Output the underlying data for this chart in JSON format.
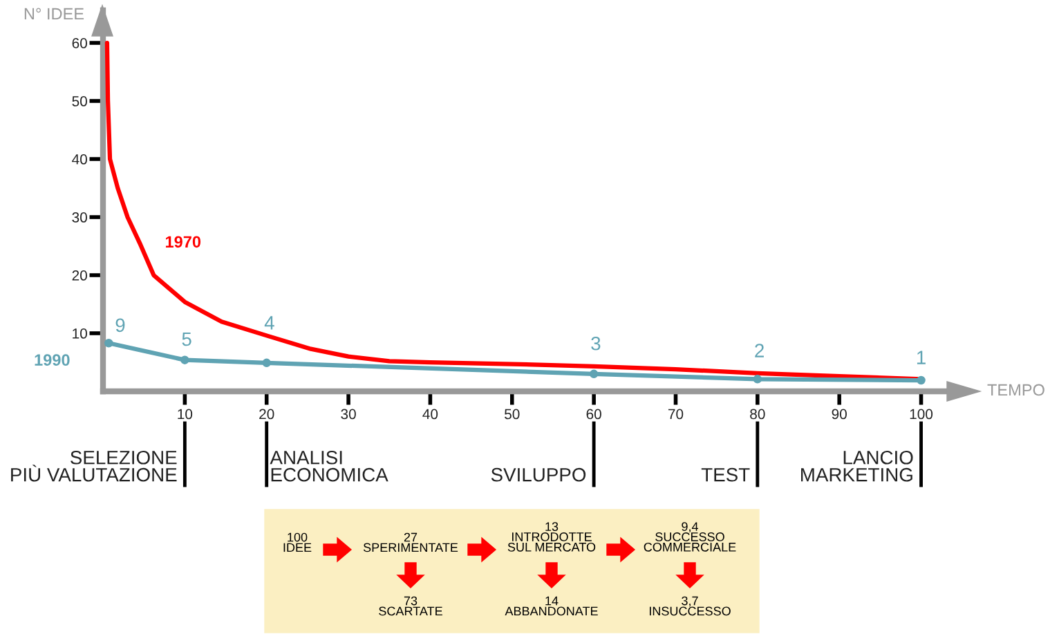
{
  "chart_data": {
    "type": "line",
    "xlabel": "TEMPO",
    "ylabel": "N° IDEE",
    "xlim": [
      0,
      105.7
    ],
    "ylim": [
      0,
      65.6
    ],
    "xticks": [
      10,
      20,
      30,
      40,
      50,
      60,
      70,
      80,
      90,
      100
    ],
    "yticks": [
      10,
      20,
      30,
      40,
      50,
      60
    ],
    "grid": false,
    "legend": false,
    "series": [
      {
        "name": "1970",
        "color": "#ff0000",
        "marker": "none",
        "x": [
          0.5,
          0.6,
          0.85,
          1.8,
          3,
          4.5,
          6.2,
          10,
          14.5,
          20,
          25.4,
          30,
          35,
          40,
          50,
          60,
          70,
          80,
          90,
          100
        ],
        "values": [
          60,
          50,
          40,
          35,
          30,
          25.5,
          20,
          15.4,
          12,
          9.6,
          7.3,
          6,
          5.2,
          5,
          4.7,
          4.3,
          3.8,
          3.1,
          2.6,
          2.1
        ]
      },
      {
        "name": "1990",
        "color": "#5fa3b3",
        "marker": "circle",
        "x": [
          0.7,
          10,
          20,
          60,
          80,
          100
        ],
        "values": [
          8.3,
          5.4,
          4.9,
          3.0,
          2.1,
          1.9
        ]
      }
    ],
    "annotations": [
      {
        "text": "9",
        "x": 0.7,
        "y": 8.3
      },
      {
        "text": "5",
        "x": 10,
        "y": 5.4
      },
      {
        "text": "4",
        "x": 20,
        "y": 4.9
      },
      {
        "text": "3",
        "x": 60,
        "y": 3.0
      },
      {
        "text": "2",
        "x": 80,
        "y": 2.1
      },
      {
        "text": "1",
        "x": 100,
        "y": 1.9
      },
      "SELEZIONE\nPIÙ VALUTAZIONE",
      "ANALISI\nECONOMICA",
      "SVILUPPO",
      "TEST",
      "LANCIO\nMARKETING",
      "100\nIDEE",
      "27\nSPERIMENTATE",
      "13\nINTRODOTTE\nSUL MERCATO",
      "9,4\nSUCCESSO\nCOMMERCIALE",
      "73\nSCARTATE",
      "14\nABBANDONATE",
      "3,7\nINSUCCESSO"
    ]
  }
}
